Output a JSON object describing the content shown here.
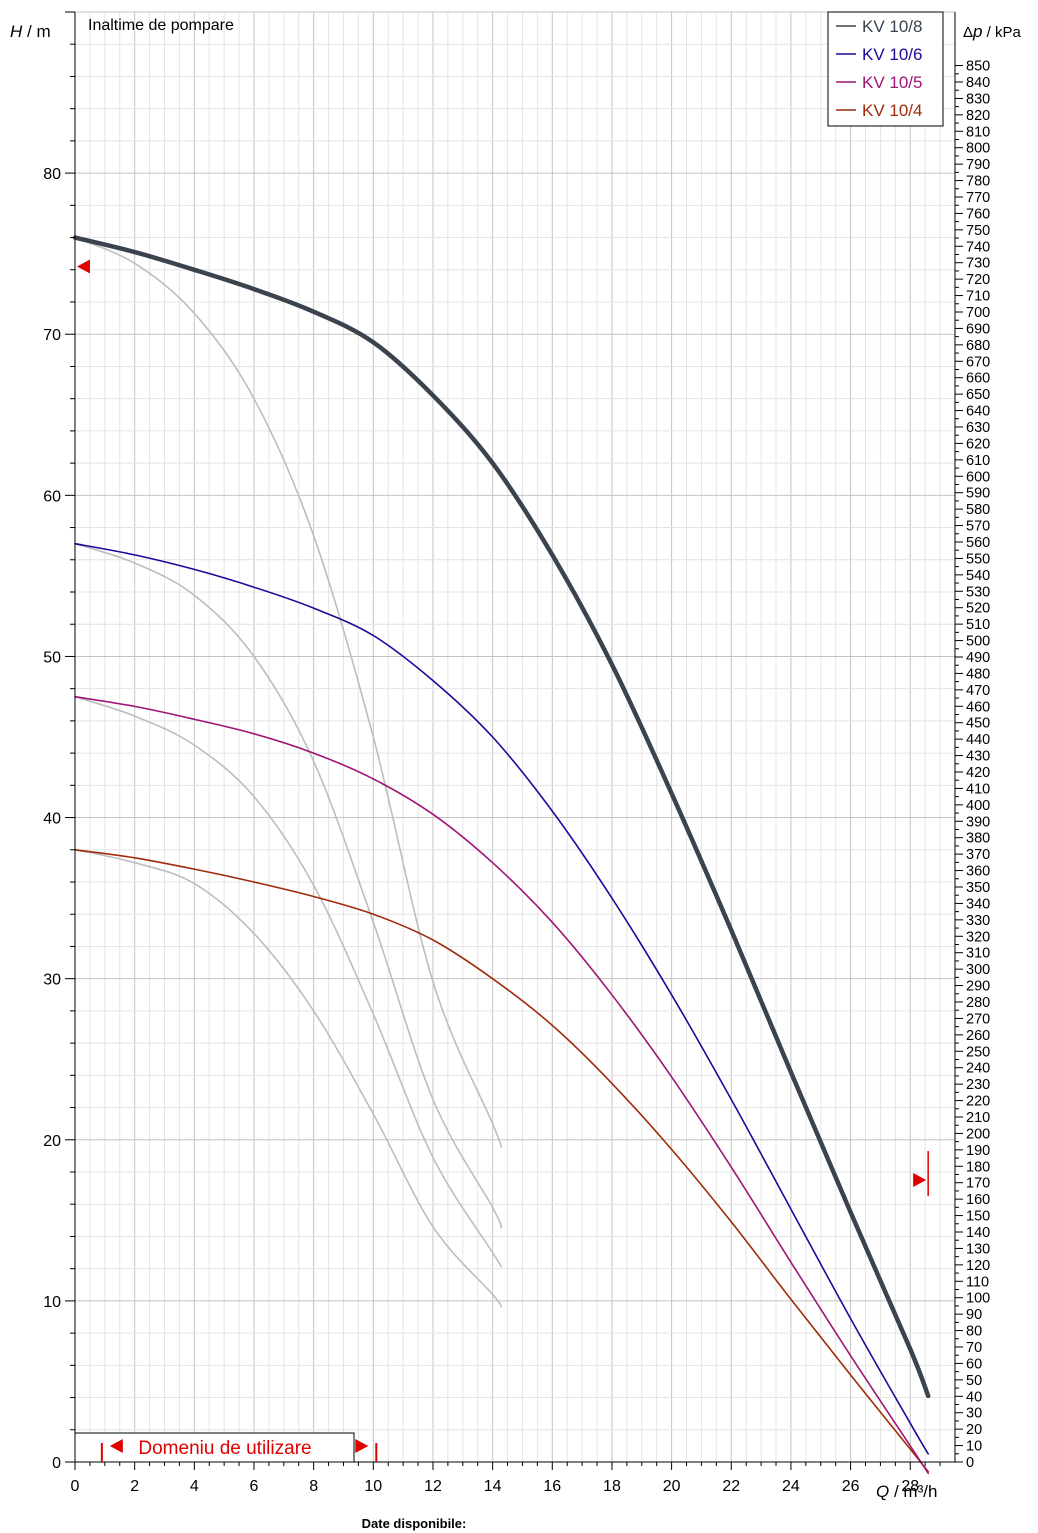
{
  "chart_data": {
    "type": "line",
    "title": "Inaltime de pompare",
    "ylabel_italic": "H",
    "ylabel_unit": " / m",
    "y2label_italic": "p",
    "y2label_delta": "Δ",
    "y2label_unit": " / kPa",
    "xlabel_italic": "Q",
    "xlabel_unit": " / m³/h",
    "xlim": [
      0,
      29.5
    ],
    "ylim": [
      0,
      90
    ],
    "y2lim": [
      0,
      882.6
    ],
    "x_ticks": [
      0,
      2,
      4,
      6,
      8,
      10,
      12,
      14,
      16,
      18,
      20,
      22,
      24,
      26,
      28
    ],
    "y_ticks": [
      10,
      20,
      30,
      40,
      50,
      60,
      70,
      80
    ],
    "y2_tick_step": 10,
    "y2_tick_max": 850,
    "grid": true,
    "legend_position": "top-right",
    "series": [
      {
        "name": "KV 10/8",
        "color": "#3a434e",
        "width": 4.5,
        "x": [
          0,
          2,
          4,
          6,
          8,
          10,
          12,
          14,
          16,
          18,
          20,
          22,
          24,
          26,
          28,
          28.6
        ],
        "y": [
          76,
          75.1,
          74,
          72.8,
          71.4,
          69.5,
          66.2,
          62.0,
          56.3,
          49.5,
          41.5,
          33.0,
          24.2,
          15.5,
          7.0,
          4.1
        ]
      },
      {
        "name": "KV 10/6",
        "color": "#1a0a9a",
        "width": 1.6,
        "x": [
          0,
          2,
          4,
          6,
          8,
          10,
          12,
          14,
          16,
          18,
          20,
          22,
          24,
          26,
          28,
          28.6
        ],
        "y": [
          57,
          56.3,
          55.4,
          54.3,
          53.0,
          51.3,
          48.5,
          45.0,
          40.4,
          35.0,
          29.0,
          22.5,
          15.7,
          8.9,
          2.4,
          0.5
        ]
      },
      {
        "name": "KV 10/5",
        "color": "#a01476",
        "width": 1.6,
        "x": [
          0,
          2,
          4,
          6,
          8,
          10,
          12,
          14,
          16,
          18,
          20,
          22,
          24,
          26,
          28,
          28.6
        ],
        "y": [
          47.5,
          46.9,
          46.1,
          45.2,
          44.0,
          42.4,
          40.2,
          37.2,
          33.5,
          29.0,
          23.9,
          18.3,
          12.4,
          6.6,
          1.0,
          -0.7
        ]
      },
      {
        "name": "KV 10/4",
        "color": "#a02a0a",
        "width": 1.6,
        "x": [
          0,
          2,
          4,
          6,
          8,
          10,
          12,
          14,
          16,
          18,
          20,
          22,
          24,
          26,
          28,
          28.6
        ],
        "y": [
          38,
          37.5,
          36.8,
          36.0,
          35.1,
          34.0,
          32.4,
          30.0,
          27.1,
          23.5,
          19.4,
          14.9,
          10.1,
          5.4,
          0.8,
          -0.6
        ]
      }
    ],
    "reference_curves": [
      {
        "x": [
          0,
          2,
          4,
          6,
          8,
          10,
          12,
          14,
          14.3
        ],
        "y": [
          76,
          74.4,
          71.3,
          66.0,
          57.5,
          45.0,
          29.8,
          21.0,
          19.5
        ]
      },
      {
        "x": [
          0,
          2,
          4,
          6,
          8,
          10,
          12,
          14,
          14.3
        ],
        "y": [
          57,
          55.8,
          53.8,
          50.0,
          43.5,
          33.5,
          22.5,
          15.8,
          14.5
        ]
      },
      {
        "x": [
          0,
          2,
          4,
          6,
          8,
          10,
          12,
          14,
          14.3
        ],
        "y": [
          47.5,
          46.3,
          44.5,
          41.3,
          35.8,
          27.8,
          18.9,
          13.0,
          12.1
        ]
      },
      {
        "x": [
          0,
          2,
          4,
          6,
          8,
          10,
          12,
          14,
          14.3
        ],
        "y": [
          38,
          37.2,
          35.9,
          32.8,
          28.0,
          21.6,
          14.6,
          10.4,
          9.6
        ]
      }
    ],
    "markers": [
      {
        "x": 0,
        "y": 74.2
      },
      {
        "x": 28.6,
        "y": 17.5
      }
    ],
    "usage_range": {
      "label": "Domeniu de utilizare",
      "from": 0.9,
      "to": 10.1
    },
    "footer": "Date disponibile:"
  }
}
